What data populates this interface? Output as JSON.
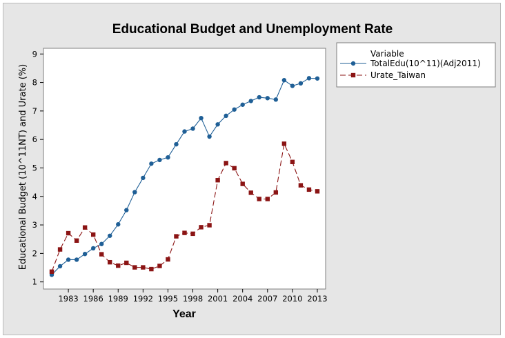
{
  "chart_data": {
    "type": "line",
    "title": "Educational Budget and Unemployment Rate",
    "xlabel": "Year",
    "ylabel": "Educational Budget (10^11NT) and Urate (%)",
    "xlim": [
      1980,
      2014
    ],
    "ylim": [
      0.75,
      9.2
    ],
    "x_ticks": [
      1983,
      1986,
      1989,
      1992,
      1995,
      1998,
      2001,
      2004,
      2007,
      2010,
      2013
    ],
    "y_ticks": [
      1,
      2,
      3,
      4,
      5,
      6,
      7,
      8,
      9
    ],
    "legend_title": "Variable",
    "legend_position": "right",
    "x": [
      1981,
      1982,
      1983,
      1984,
      1985,
      1986,
      1987,
      1988,
      1989,
      1990,
      1991,
      1992,
      1993,
      1994,
      1995,
      1996,
      1997,
      1998,
      1999,
      2000,
      2001,
      2002,
      2003,
      2004,
      2005,
      2006,
      2007,
      2008,
      2009,
      2010,
      2011,
      2012,
      2013
    ],
    "series": [
      {
        "name": "TotalEdu(10^11)(Adj2011)",
        "color": "#1f5f96",
        "marker": "circle",
        "line_style": "solid",
        "values": [
          1.25,
          1.55,
          1.78,
          1.78,
          1.98,
          2.18,
          2.33,
          2.62,
          3.02,
          3.52,
          4.15,
          4.65,
          5.15,
          5.28,
          5.37,
          5.83,
          6.28,
          6.38,
          6.75,
          6.1,
          6.53,
          6.83,
          7.05,
          7.22,
          7.35,
          7.48,
          7.45,
          7.4,
          8.08,
          7.88,
          7.97,
          8.15,
          8.14
        ]
      },
      {
        "name": "Urate_Taiwan",
        "color": "#8b1414",
        "marker": "square",
        "line_style": "dashed",
        "values": [
          1.36,
          2.14,
          2.71,
          2.45,
          2.91,
          2.66,
          1.97,
          1.69,
          1.57,
          1.67,
          1.51,
          1.51,
          1.45,
          1.56,
          1.79,
          2.6,
          2.72,
          2.69,
          2.92,
          2.99,
          4.57,
          5.17,
          4.99,
          4.44,
          4.13,
          3.91,
          3.91,
          4.14,
          5.85,
          5.21,
          4.39,
          4.24,
          4.18
        ]
      }
    ]
  }
}
